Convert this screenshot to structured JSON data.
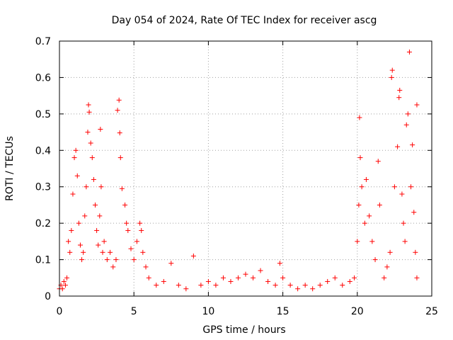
{
  "chart_data": {
    "type": "scatter",
    "title": "Day 054 of 2024, Rate Of TEC Index for receiver ascg",
    "xlabel": "GPS time / hours",
    "ylabel": "ROTI / TECUs",
    "xlim": [
      0,
      25
    ],
    "ylim": [
      0,
      0.7
    ],
    "xticks": [
      0,
      5,
      10,
      15,
      20,
      25
    ],
    "xtick_labels": [
      "0",
      "5",
      "10",
      "15",
      "20",
      "25"
    ],
    "yticks": [
      0,
      0.1,
      0.2,
      0.3,
      0.4,
      0.5,
      0.6,
      0.7
    ],
    "ytick_labels": [
      "0",
      "0.1",
      "0.2",
      "0.3",
      "0.4",
      "0.5",
      "0.6",
      "0.7"
    ],
    "grid": true,
    "marker": "+",
    "color": "#ff0000",
    "series": [
      {
        "name": "ROTI",
        "points": [
          [
            0.0,
            0.02
          ],
          [
            0.1,
            0.03
          ],
          [
            0.2,
            0.02
          ],
          [
            0.3,
            0.04
          ],
          [
            0.4,
            0.03
          ],
          [
            0.5,
            0.05
          ],
          [
            0.6,
            0.15
          ],
          [
            0.7,
            0.12
          ],
          [
            0.8,
            0.18
          ],
          [
            0.9,
            0.28
          ],
          [
            1.0,
            0.38
          ],
          [
            1.1,
            0.4
          ],
          [
            1.2,
            0.33
          ],
          [
            1.3,
            0.2
          ],
          [
            1.4,
            0.14
          ],
          [
            1.5,
            0.1
          ],
          [
            1.6,
            0.12
          ],
          [
            1.7,
            0.22
          ],
          [
            1.8,
            0.3
          ],
          [
            1.9,
            0.45
          ],
          [
            1.95,
            0.525
          ],
          [
            2.0,
            0.505
          ],
          [
            2.1,
            0.42
          ],
          [
            2.2,
            0.38
          ],
          [
            2.3,
            0.32
          ],
          [
            2.4,
            0.25
          ],
          [
            2.5,
            0.18
          ],
          [
            2.6,
            0.14
          ],
          [
            2.7,
            0.22
          ],
          [
            2.75,
            0.458
          ],
          [
            2.8,
            0.3
          ],
          [
            2.9,
            0.12
          ],
          [
            3.0,
            0.15
          ],
          [
            3.2,
            0.1
          ],
          [
            3.4,
            0.12
          ],
          [
            3.6,
            0.08
          ],
          [
            3.8,
            0.1
          ],
          [
            3.9,
            0.51
          ],
          [
            4.0,
            0.538
          ],
          [
            4.05,
            0.448
          ],
          [
            4.1,
            0.38
          ],
          [
            4.2,
            0.295
          ],
          [
            4.4,
            0.25
          ],
          [
            4.5,
            0.2
          ],
          [
            4.6,
            0.18
          ],
          [
            4.8,
            0.13
          ],
          [
            5.0,
            0.1
          ],
          [
            5.2,
            0.15
          ],
          [
            5.4,
            0.2
          ],
          [
            5.5,
            0.18
          ],
          [
            5.6,
            0.12
          ],
          [
            5.8,
            0.08
          ],
          [
            6.0,
            0.05
          ],
          [
            6.5,
            0.03
          ],
          [
            7.0,
            0.04
          ],
          [
            7.5,
            0.09
          ],
          [
            8.0,
            0.03
          ],
          [
            8.5,
            0.02
          ],
          [
            9.0,
            0.11
          ],
          [
            9.5,
            0.03
          ],
          [
            10.0,
            0.04
          ],
          [
            10.5,
            0.03
          ],
          [
            11.0,
            0.05
          ],
          [
            11.5,
            0.04
          ],
          [
            12.0,
            0.05
          ],
          [
            12.5,
            0.06
          ],
          [
            13.0,
            0.05
          ],
          [
            13.5,
            0.07
          ],
          [
            14.0,
            0.04
          ],
          [
            14.5,
            0.03
          ],
          [
            14.8,
            0.09
          ],
          [
            15.0,
            0.05
          ],
          [
            15.5,
            0.03
          ],
          [
            16.0,
            0.02
          ],
          [
            16.5,
            0.03
          ],
          [
            17.0,
            0.02
          ],
          [
            17.5,
            0.03
          ],
          [
            18.0,
            0.04
          ],
          [
            18.5,
            0.05
          ],
          [
            19.0,
            0.03
          ],
          [
            19.5,
            0.04
          ],
          [
            19.8,
            0.05
          ],
          [
            20.0,
            0.15
          ],
          [
            20.1,
            0.25
          ],
          [
            20.15,
            0.49
          ],
          [
            20.2,
            0.38
          ],
          [
            20.3,
            0.3
          ],
          [
            20.5,
            0.2
          ],
          [
            20.6,
            0.32
          ],
          [
            20.8,
            0.22
          ],
          [
            21.0,
            0.15
          ],
          [
            21.2,
            0.1
          ],
          [
            21.4,
            0.37
          ],
          [
            21.5,
            0.25
          ],
          [
            21.8,
            0.05
          ],
          [
            22.0,
            0.08
          ],
          [
            22.2,
            0.12
          ],
          [
            22.3,
            0.6
          ],
          [
            22.35,
            0.62
          ],
          [
            22.5,
            0.3
          ],
          [
            22.7,
            0.41
          ],
          [
            22.8,
            0.545
          ],
          [
            22.85,
            0.565
          ],
          [
            23.0,
            0.28
          ],
          [
            23.1,
            0.2
          ],
          [
            23.2,
            0.15
          ],
          [
            23.3,
            0.47
          ],
          [
            23.4,
            0.5
          ],
          [
            23.5,
            0.67
          ],
          [
            23.6,
            0.3
          ],
          [
            23.7,
            0.415
          ],
          [
            23.8,
            0.23
          ],
          [
            23.9,
            0.12
          ],
          [
            24.0,
            0.525
          ],
          [
            24.0,
            0.05
          ]
        ]
      }
    ]
  }
}
